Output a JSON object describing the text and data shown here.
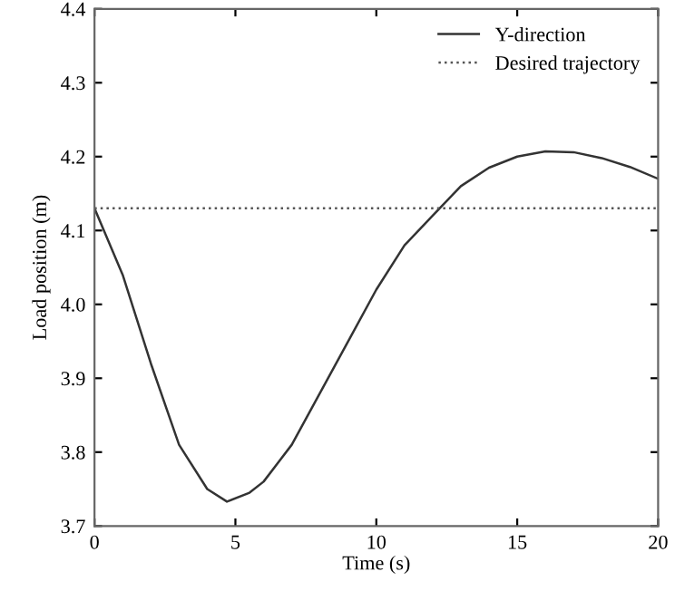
{
  "chart_data": {
    "type": "line",
    "xlabel": "Time (s)",
    "ylabel": "Load position (m)",
    "xlim": [
      0,
      20
    ],
    "xticks": [
      0,
      5,
      10,
      15,
      20
    ],
    "ylim": [
      3.7,
      4.4
    ],
    "yticks": [
      3.7,
      3.8,
      3.9,
      {
        "value": 4.0,
        "label": "4.0"
      },
      4.1,
      4.2,
      4.3,
      4.4
    ],
    "grid": false,
    "legend": "top right",
    "series": [
      {
        "name": "Y-direction",
        "color": "#333333",
        "line_style": "solid",
        "x": [
          0,
          1,
          2,
          3,
          4,
          4.7,
          5.5,
          6,
          7,
          8,
          9,
          10,
          11,
          12,
          13,
          14,
          15,
          16,
          17,
          18,
          19,
          20
        ],
        "values": [
          4.13,
          4.04,
          3.92,
          3.81,
          3.75,
          3.733,
          3.745,
          3.76,
          3.81,
          3.88,
          3.95,
          4.02,
          4.08,
          4.12,
          4.16,
          4.185,
          4.2,
          4.207,
          4.206,
          4.198,
          4.186,
          4.17
        ]
      },
      {
        "name": "Desired trajectory",
        "color": "#555555",
        "line_style": "dotted",
        "x": [
          0,
          20
        ],
        "values": [
          4.13,
          4.13
        ]
      }
    ]
  }
}
